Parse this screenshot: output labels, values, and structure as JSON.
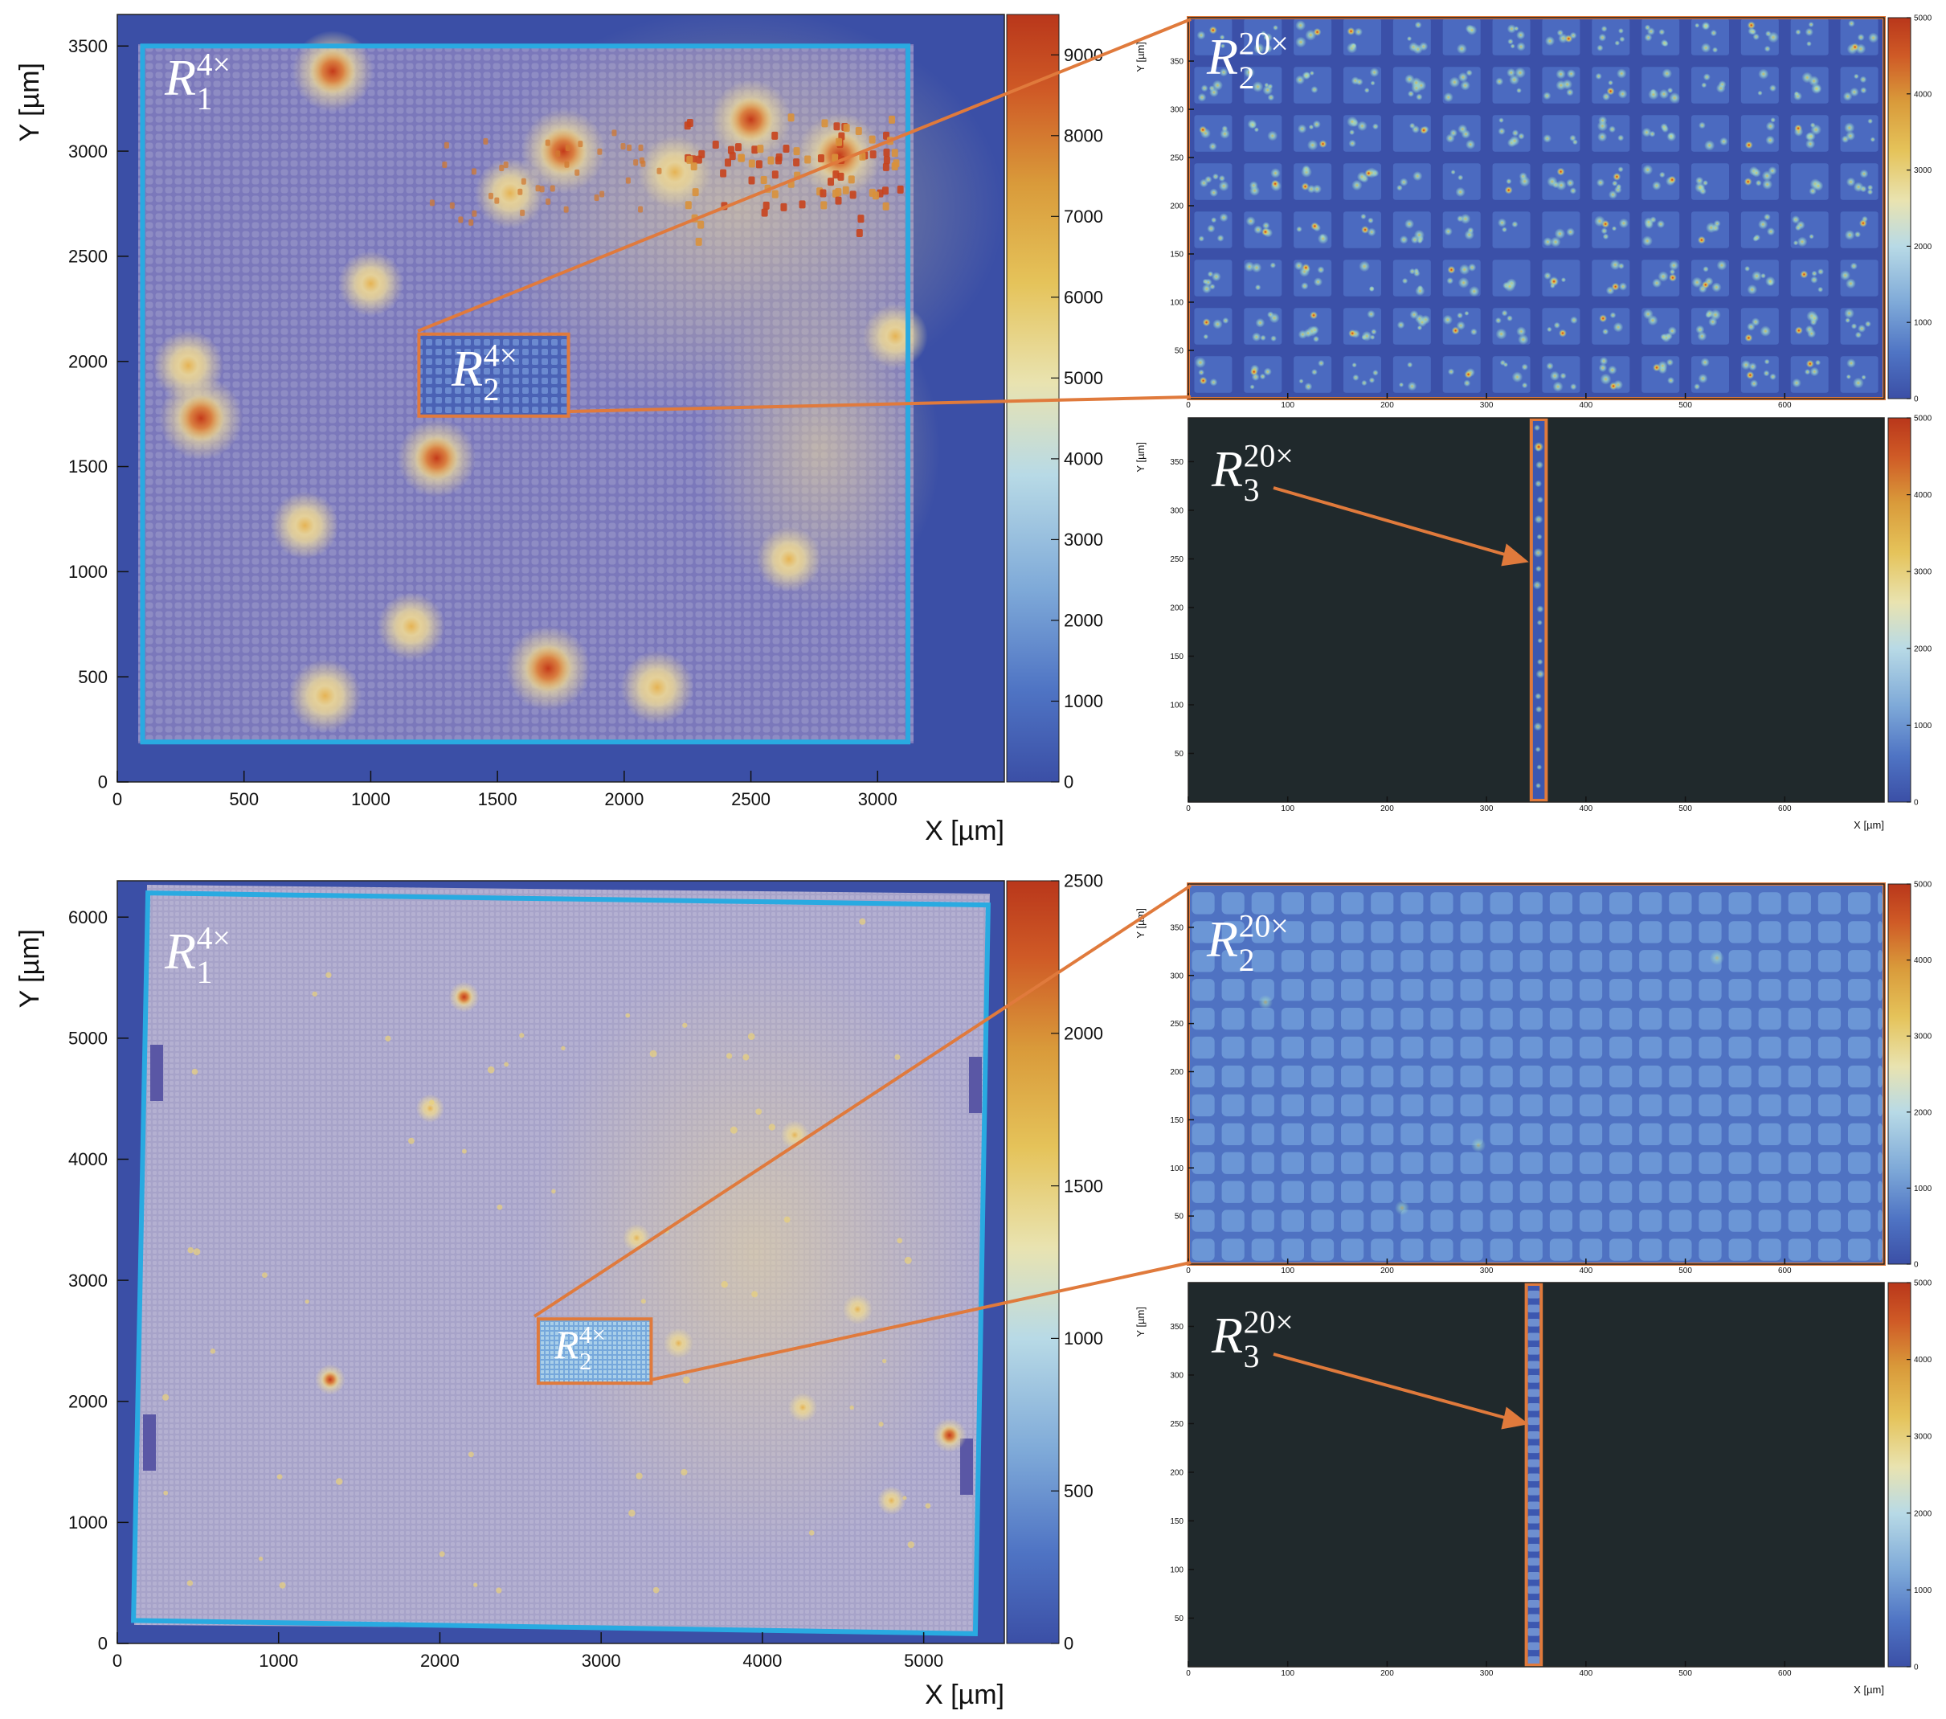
{
  "figure_title": "",
  "colors": {
    "region_outline": "#29aae1",
    "zoom_outline": "#e07a3c",
    "frame_background": "#3b4fa6",
    "dark_background": "#20292c",
    "colormap": [
      "#3b4fa6",
      "#4f74c4",
      "#7ea9d8",
      "#b8dae6",
      "#e9e3b0",
      "#e5c35a",
      "#d99a3a",
      "#cf5a26",
      "#b9371b"
    ]
  },
  "chart_data": [
    {
      "id": "top_4x",
      "type": "heatmap",
      "title": "",
      "xlabel": "X [µm]",
      "ylabel": "Y [µm]",
      "xlim": [
        0,
        3500
      ],
      "ylim": [
        0,
        3650
      ],
      "xticks": [
        0,
        500,
        1000,
        1500,
        2000,
        2500,
        3000
      ],
      "yticks": [
        0,
        500,
        1000,
        1500,
        2000,
        2500,
        3000,
        3500
      ],
      "colorbar": {
        "min": 0,
        "max": 9500,
        "ticks": [
          0,
          1000,
          2000,
          3000,
          4000,
          5000,
          6000,
          7000,
          8000,
          9000
        ]
      },
      "grid_pitch": 50,
      "base_level": 2200,
      "regions": [
        {
          "name": "R1",
          "magnification": "4×",
          "corners": [
            [
              100,
              3500
            ],
            [
              3120,
              3500
            ],
            [
              3120,
              190
            ],
            [
              100,
              190
            ]
          ]
        },
        {
          "name": "R2",
          "magnification": "4×",
          "corners": [
            [
              1190,
              2130
            ],
            [
              1780,
              2130
            ],
            [
              1780,
              1740
            ],
            [
              1190,
              1740
            ]
          ]
        }
      ],
      "hotspots": [
        {
          "x": 2850,
          "y": 2980,
          "intensity": 9200
        },
        {
          "x": 2500,
          "y": 3150,
          "intensity": 8200
        },
        {
          "x": 2200,
          "y": 2900,
          "intensity": 7000
        },
        {
          "x": 1760,
          "y": 3000,
          "intensity": 9000
        },
        {
          "x": 1550,
          "y": 2800,
          "intensity": 6500
        },
        {
          "x": 850,
          "y": 3380,
          "intensity": 8500
        },
        {
          "x": 330,
          "y": 1730,
          "intensity": 9000
        },
        {
          "x": 280,
          "y": 1980,
          "intensity": 6500
        },
        {
          "x": 1260,
          "y": 1540,
          "intensity": 8000
        },
        {
          "x": 1700,
          "y": 540,
          "intensity": 9200
        },
        {
          "x": 820,
          "y": 410,
          "intensity": 7000
        },
        {
          "x": 2130,
          "y": 450,
          "intensity": 7000
        },
        {
          "x": 1160,
          "y": 740,
          "intensity": 6000
        },
        {
          "x": 740,
          "y": 1220,
          "intensity": 6000
        },
        {
          "x": 1000,
          "y": 2370,
          "intensity": 5500
        },
        {
          "x": 2650,
          "y": 1060,
          "intensity": 5500
        },
        {
          "x": 3070,
          "y": 2120,
          "intensity": 5500
        }
      ]
    },
    {
      "id": "top_20x_R2",
      "type": "heatmap",
      "title": "",
      "xlabel": "",
      "ylabel": "Y [µm]",
      "xlim": [
        0,
        700
      ],
      "ylim": [
        0,
        395
      ],
      "xticks": [
        0,
        100,
        200,
        300,
        400,
        500,
        600
      ],
      "yticks": [
        50,
        100,
        150,
        200,
        250,
        300,
        350
      ],
      "colorbar": {
        "min": 0,
        "max": 5000,
        "ticks": [
          0,
          1000,
          2000,
          3000,
          4000,
          5000
        ]
      },
      "grid_pitch": 50,
      "region": {
        "name": "R2",
        "magnification": "20×"
      }
    },
    {
      "id": "top_20x_R3",
      "type": "heatmap",
      "title": "",
      "xlabel": "X [µm]",
      "ylabel": "Y [µm]",
      "xlim": [
        0,
        700
      ],
      "ylim": [
        0,
        395
      ],
      "xticks": [
        0,
        100,
        200,
        300,
        400,
        500,
        600
      ],
      "yticks": [
        50,
        100,
        150,
        200,
        250,
        300,
        350
      ],
      "colorbar": {
        "min": 0,
        "max": 5000,
        "ticks": [
          0,
          1000,
          2000,
          3000,
          4000,
          5000
        ]
      },
      "region": {
        "name": "R3",
        "magnification": "20×",
        "x_range": [
          345,
          360
        ]
      }
    },
    {
      "id": "bottom_4x",
      "type": "heatmap",
      "title": "",
      "xlabel": "X [µm]",
      "ylabel": "Y [µm]",
      "xlim": [
        0,
        5500
      ],
      "ylim": [
        0,
        6300
      ],
      "xticks": [
        0,
        1000,
        2000,
        3000,
        4000,
        5000
      ],
      "yticks": [
        0,
        1000,
        2000,
        3000,
        4000,
        5000,
        6000
      ],
      "colorbar": {
        "min": 0,
        "max": 2500,
        "ticks": [
          0,
          500,
          1000,
          1500,
          2000,
          2500
        ]
      },
      "base_level": 900,
      "regions": [
        {
          "name": "R1",
          "magnification": "4×",
          "corners": [
            [
              190,
              6200
            ],
            [
              5400,
              6100
            ],
            [
              5320,
              80
            ],
            [
              100,
              190
            ]
          ]
        },
        {
          "name": "R2",
          "magnification": "4×",
          "corners": [
            [
              2610,
              2680
            ],
            [
              3310,
              2680
            ],
            [
              3310,
              2150
            ],
            [
              2610,
              2150
            ]
          ]
        }
      ],
      "hotspots": [
        {
          "x": 5160,
          "y": 1720,
          "intensity": 2400
        },
        {
          "x": 2150,
          "y": 5340,
          "intensity": 1900
        },
        {
          "x": 1320,
          "y": 2180,
          "intensity": 1900
        },
        {
          "x": 4590,
          "y": 2760,
          "intensity": 1800
        },
        {
          "x": 4250,
          "y": 1950,
          "intensity": 1700
        },
        {
          "x": 3480,
          "y": 2480,
          "intensity": 1800
        },
        {
          "x": 1940,
          "y": 4420,
          "intensity": 1600
        },
        {
          "x": 4800,
          "y": 1180,
          "intensity": 1600
        },
        {
          "x": 4200,
          "y": 4200,
          "intensity": 1600
        },
        {
          "x": 3220,
          "y": 3350,
          "intensity": 1500
        }
      ]
    },
    {
      "id": "bottom_20x_R2",
      "type": "heatmap",
      "title": "",
      "xlabel": "",
      "ylabel": "Y [µm]",
      "xlim": [
        0,
        700
      ],
      "ylim": [
        0,
        395
      ],
      "xticks": [
        0,
        100,
        200,
        300,
        400,
        500,
        600
      ],
      "yticks": [
        50,
        100,
        150,
        200,
        250,
        300,
        350
      ],
      "colorbar": {
        "min": 0,
        "max": 5000,
        "ticks": [
          0,
          1000,
          2000,
          3000,
          4000,
          5000
        ]
      },
      "grid_pitch": 30,
      "region": {
        "name": "R2",
        "magnification": "20×"
      }
    },
    {
      "id": "bottom_20x_R3",
      "type": "heatmap",
      "title": "",
      "xlabel": "X [µm]",
      "ylabel": "Y [µm]",
      "xlim": [
        0,
        700
      ],
      "ylim": [
        0,
        395
      ],
      "xticks": [
        0,
        100,
        200,
        300,
        400,
        500,
        600
      ],
      "yticks": [
        50,
        100,
        150,
        200,
        250,
        300,
        350
      ],
      "colorbar": {
        "min": 0,
        "max": 5000,
        "ticks": [
          0,
          1000,
          2000,
          3000,
          4000,
          5000
        ]
      },
      "region": {
        "name": "R3",
        "magnification": "20×",
        "x_range": [
          340,
          355
        ]
      }
    }
  ]
}
